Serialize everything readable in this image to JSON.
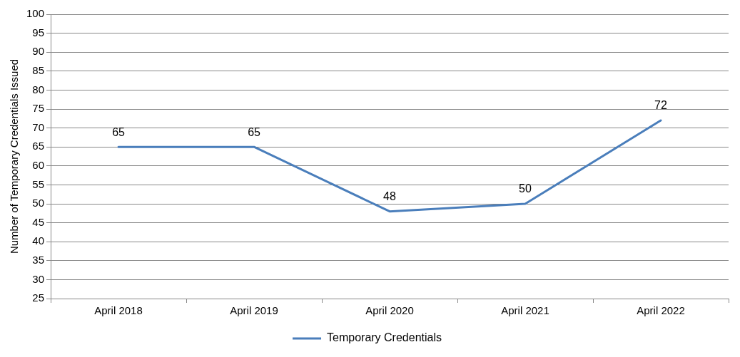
{
  "chart_data": {
    "type": "line",
    "categories": [
      "April 2018",
      "April 2019",
      "April 2020",
      "April 2021",
      "April 2022"
    ],
    "series": [
      {
        "name": "Temporary Credentials",
        "color": "#4a7ebb",
        "values": [
          65,
          65,
          48,
          50,
          72
        ]
      }
    ],
    "ylabel": "Number of Temporary Credentials Issued",
    "ylim": [
      25,
      100
    ],
    "yticks": [
      25,
      30,
      35,
      40,
      45,
      50,
      55,
      60,
      65,
      70,
      75,
      80,
      85,
      90,
      95,
      100
    ],
    "grid": "y",
    "legend": "bottom",
    "data_labels": true,
    "marker": "none",
    "line_style": "solid"
  }
}
